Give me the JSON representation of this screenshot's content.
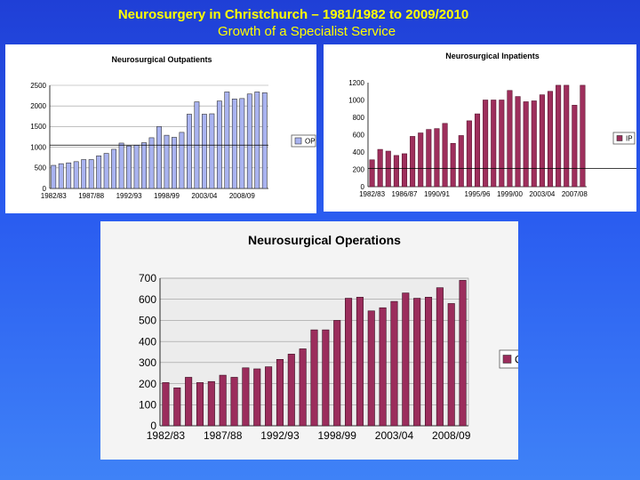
{
  "slide": {
    "title_line1": "Neurosurgery in Christchurch – 1981/1982 to 2009/2010",
    "title_line2": "Growth of a Specialist Service"
  },
  "colors": {
    "outpatients": "#a9b3f0",
    "inpatients": "#9e2f5c",
    "operations": "#9b2d5c",
    "background": "#2a5cf0",
    "title": "#ffff00"
  },
  "chart_data": [
    {
      "type": "bar",
      "title": "Neurosurgical Outpatients",
      "legend": {
        "labels": [
          "OP"
        ],
        "position": "right"
      },
      "series": [
        {
          "name": "OP",
          "values": [
            560,
            600,
            620,
            650,
            700,
            700,
            790,
            850,
            950,
            1100,
            1030,
            1050,
            1110,
            1230,
            1500,
            1290,
            1240,
            1360,
            1800,
            2100,
            1800,
            1810,
            2120,
            2340,
            2170,
            2180,
            2290,
            2340,
            2320
          ]
        }
      ],
      "categories": [
        "1982/83",
        "",
        "",
        "",
        "",
        "1987/88",
        "",
        "",
        "",
        "",
        "1992/93",
        "",
        "",
        "",
        "",
        "1998/99",
        "",
        "",
        "",
        "",
        "2003/04",
        "",
        "",
        "",
        "",
        "2008/09",
        "",
        "",
        ""
      ],
      "tick_labels_x": [
        "1982/83",
        "1987/88",
        "1992/93",
        "1998/99",
        "2003/04",
        "2008/09"
      ],
      "tick_labels_y": [
        "0",
        "500",
        "1000",
        "1500",
        "2000",
        "2500"
      ],
      "ylim": [
        0,
        2500
      ],
      "reference_line": 1050,
      "grid": true
    },
    {
      "type": "bar",
      "title": "Neurosurgical Inpatients",
      "legend": {
        "labels": [
          "IP"
        ],
        "position": "right"
      },
      "series": [
        {
          "name": "IP",
          "values": [
            310,
            430,
            410,
            360,
            380,
            580,
            620,
            660,
            670,
            730,
            500,
            590,
            760,
            840,
            1000,
            1000,
            1000,
            1110,
            1040,
            980,
            990,
            1060,
            1100,
            1170,
            1170,
            940,
            1170
          ]
        }
      ],
      "categories": [
        "1982/83",
        "",
        "",
        "",
        "1986/87",
        "",
        "",
        "",
        "1990/91",
        "",
        "",
        "",
        "",
        "1995/96",
        "",
        "",
        "",
        "1999/00",
        "",
        "",
        "",
        "2003/04",
        "",
        "",
        "",
        "2007/08",
        ""
      ],
      "tick_labels_x": [
        "1982/83",
        "1986/87",
        "1990/91",
        "1995/96",
        "1999/00",
        "2003/04",
        "2007/08"
      ],
      "tick_labels_y": [
        "0",
        "200",
        "400",
        "600",
        "800",
        "1000",
        "1200"
      ],
      "ylim": [
        0,
        1200
      ],
      "reference_line": 210,
      "grid": false
    },
    {
      "type": "bar",
      "title": "Neurosurgical Operations",
      "legend": {
        "labels": [
          "Ops"
        ],
        "position": "right"
      },
      "series": [
        {
          "name": "Ops",
          "values": [
            205,
            180,
            230,
            205,
            210,
            240,
            230,
            275,
            270,
            280,
            315,
            340,
            365,
            455,
            455,
            500,
            605,
            610,
            545,
            560,
            590,
            630,
            605,
            610,
            655,
            580,
            690
          ]
        }
      ],
      "categories": [
        "1982/83",
        "",
        "",
        "",
        "",
        "1987/88",
        "",
        "",
        "",
        "",
        "1992/93",
        "",
        "",
        "",
        "",
        "1998/99",
        "",
        "",
        "",
        "",
        "2003/04",
        "",
        "",
        "",
        "",
        "2008/09",
        ""
      ],
      "tick_labels_x": [
        "1982/83",
        "1987/88",
        "1992/93",
        "1998/99",
        "2003/04",
        "2008/09"
      ],
      "tick_labels_y": [
        "0",
        "100",
        "200",
        "300",
        "400",
        "500",
        "600",
        "700"
      ],
      "ylim": [
        0,
        700
      ],
      "grid": true
    }
  ]
}
